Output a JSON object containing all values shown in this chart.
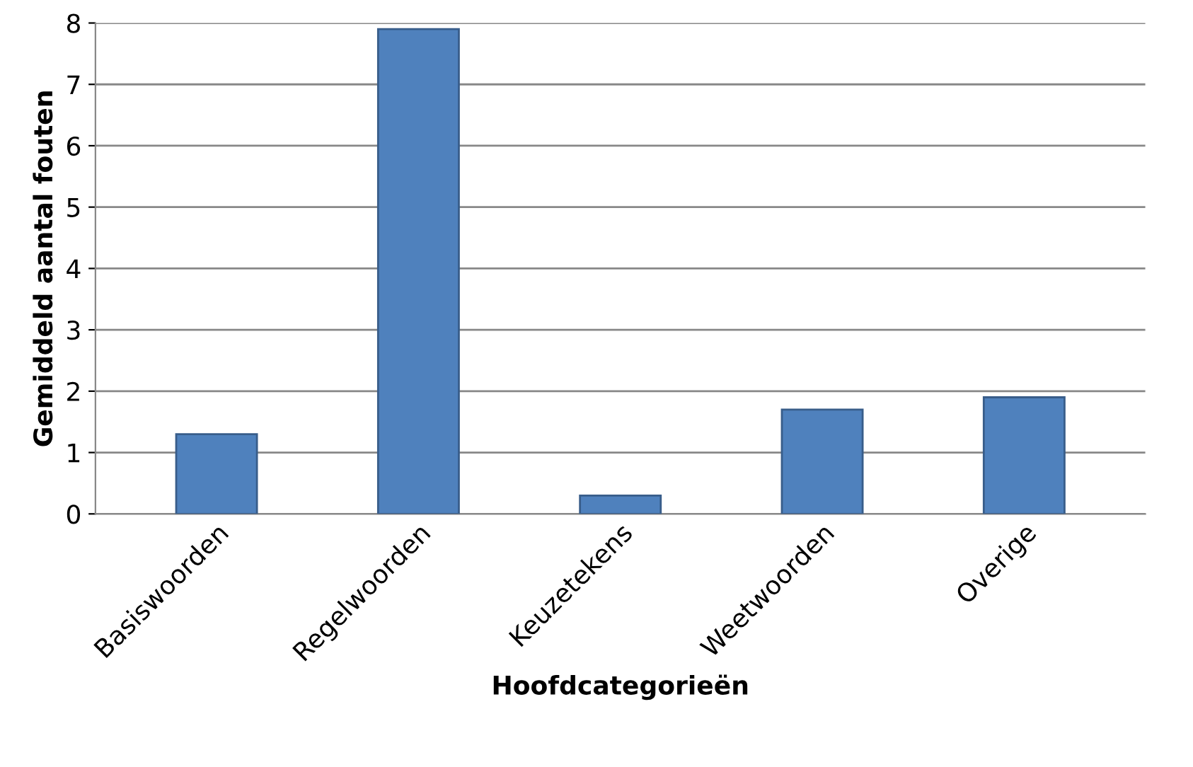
{
  "chart_data": {
    "type": "bar",
    "xlabel": "Hoofdcategorieën",
    "ylabel": "Gemiddeld aantal fouten",
    "categories": [
      "Basiswoorden",
      "Regelwoorden",
      "Keuzetekens",
      "Weetwoorden",
      "Overige"
    ],
    "values": [
      1.3,
      7.9,
      0.3,
      1.7,
      1.9
    ],
    "color": "#4f81bd",
    "ylim": [
      0,
      8
    ],
    "yticks": [
      0,
      1,
      2,
      3,
      4,
      5,
      6,
      7,
      8
    ],
    "grid": "y"
  }
}
